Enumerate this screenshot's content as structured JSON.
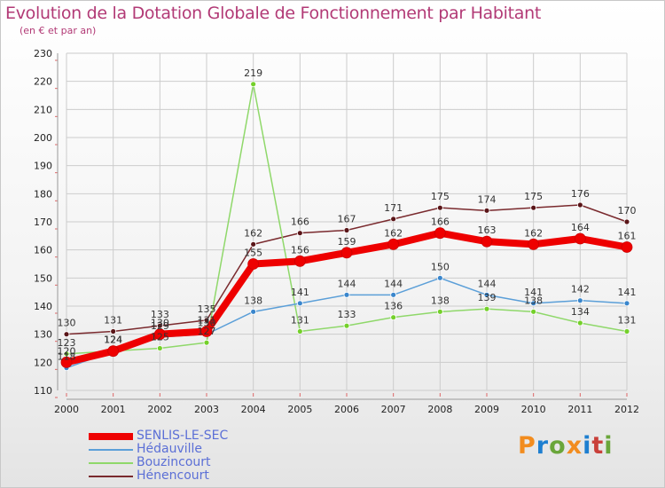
{
  "title": "Evolution de la Dotation Globale de Fonctionnement par Habitant",
  "subtitle": "(en € et par an)",
  "logo_text": "Proxiti",
  "colors": {
    "title": "#b23a76",
    "grid": "#cccccc",
    "axis_text": "#222222",
    "logo_letters": [
      "#f28c1e",
      "#1e7fd0",
      "#6aa63a",
      "#f28c1e",
      "#1e7fd0",
      "#c9403a",
      "#6aa63a"
    ]
  },
  "chart_data": {
    "type": "line",
    "title": "Evolution de la Dotation Globale de Fonctionnement par Habitant",
    "subtitle": "(en € et par an)",
    "xlabel": "",
    "ylabel": "",
    "ylim": [
      110,
      230
    ],
    "ytick_step": 10,
    "grid": true,
    "x": [
      "2000",
      "2001",
      "2002",
      "2003",
      "2004",
      "2005",
      "2006",
      "2007",
      "2008",
      "2009",
      "2010",
      "2011",
      "2012"
    ],
    "series": [
      {
        "name": "Hénencourt",
        "color": "#7a2a2e",
        "marker": "#5a1518",
        "width": 1.5,
        "values": [
          130,
          131,
          133,
          135,
          162,
          166,
          167,
          171,
          175,
          174,
          175,
          176,
          170
        ]
      },
      {
        "name": "Bouzincourt",
        "color": "#8fd86a",
        "marker": "#74d02a",
        "width": 1.5,
        "values": [
          123,
          124,
          125,
          127,
          219,
          131,
          133,
          136,
          138,
          139,
          138,
          134,
          131
        ]
      },
      {
        "name": "Hédauville",
        "color": "#5b9fd8",
        "marker": "#3a86cc",
        "width": 1.5,
        "values": [
          118,
          124,
          129,
          130,
          138,
          141,
          144,
          144,
          150,
          144,
          141,
          142,
          141
        ]
      },
      {
        "name": "SENLIS-LE-SEC",
        "color": "#ee0000",
        "marker": "#ee0000",
        "width": 8,
        "values": [
          120,
          124,
          130,
          131,
          155,
          156,
          159,
          162,
          166,
          163,
          162,
          164,
          161
        ]
      }
    ],
    "legend": [
      "SENLIS-LE-SEC",
      "Hédauville",
      "Bouzincourt",
      "Hénencourt"
    ],
    "legend_position": "bottom-left"
  }
}
